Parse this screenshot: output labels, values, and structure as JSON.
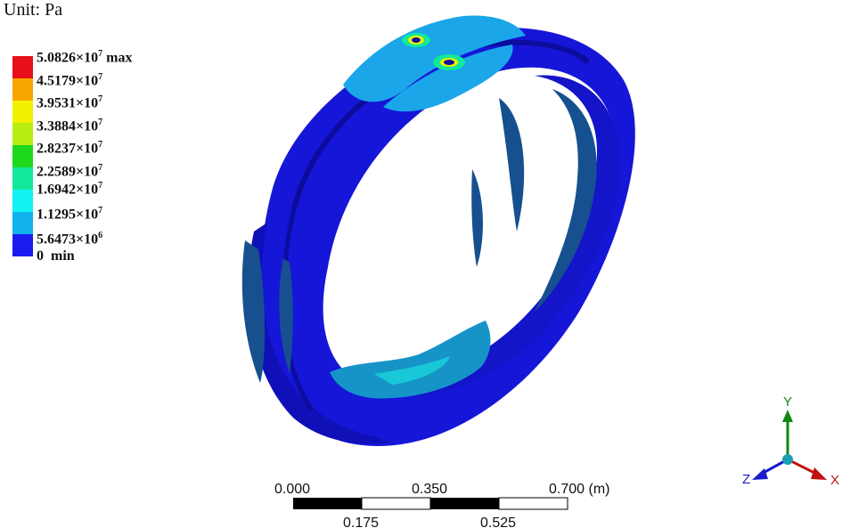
{
  "unit_label": "Unit: Pa",
  "legend": {
    "colors": [
      "#e8101a",
      "#f7a600",
      "#f2f200",
      "#b8ee12",
      "#1ed81e",
      "#12e89c",
      "#12f2f2",
      "#10b2ee",
      "#1b1bf0"
    ],
    "levels": [
      {
        "mantissa": "5.0826×10",
        "exp": "7",
        "suffix": " max"
      },
      {
        "mantissa": "4.5179×10",
        "exp": "7",
        "suffix": ""
      },
      {
        "mantissa": "3.9531×10",
        "exp": "7",
        "suffix": ""
      },
      {
        "mantissa": "3.3884×10",
        "exp": "7",
        "suffix": ""
      },
      {
        "mantissa": "2.8237×10",
        "exp": "7",
        "suffix": ""
      },
      {
        "mantissa": "2.2589×10",
        "exp": "7",
        "suffix": ""
      },
      {
        "mantissa": "1.6942×10",
        "exp": "7",
        "suffix": ""
      },
      {
        "mantissa": "1.1295×10",
        "exp": "7",
        "suffix": ""
      },
      {
        "mantissa": "5.6473×10",
        "exp": "6",
        "suffix": ""
      },
      {
        "mantissa": "0",
        "exp": "",
        "suffix": "  min"
      }
    ]
  },
  "scale_bar": {
    "top_labels": [
      "0.000",
      "0.350",
      "0.700 (m)"
    ],
    "bottom_labels": [
      "0.175",
      "0.525"
    ]
  },
  "triad": {
    "x_label": "X",
    "y_label": "Y",
    "z_label": "Z",
    "x_color": "#c01010",
    "y_color": "#118811",
    "z_color": "#1a1acc"
  }
}
